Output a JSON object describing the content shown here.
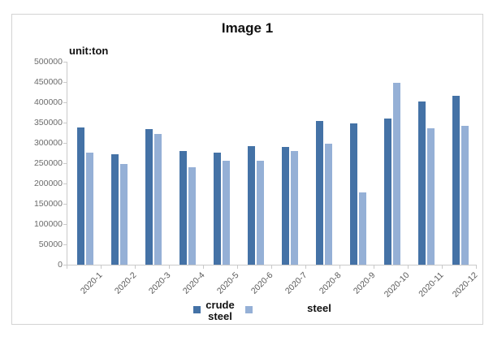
{
  "title": "Image 1",
  "unit_label": "unit:ton",
  "legend": [
    {
      "label": "crude steel",
      "color": "#4472a6"
    },
    {
      "label": "steel",
      "color": "#95b0d6"
    }
  ],
  "chart_data": {
    "type": "bar",
    "title": "Image 1",
    "ylabel": "unit:ton",
    "categories": [
      "2020-1",
      "2020-2",
      "2020-3",
      "2020-4",
      "2020-5",
      "2020-6",
      "2020-7",
      "2020-8",
      "2020-9",
      "2020-10",
      "2020-11",
      "2020-12"
    ],
    "series": [
      {
        "name": "crude steel",
        "color": "#4472a6",
        "values": [
          338000,
          272000,
          334000,
          280000,
          276000,
          292000,
          290000,
          354000,
          348000,
          360000,
          402000,
          415000
        ]
      },
      {
        "name": "steel",
        "color": "#95b0d6",
        "values": [
          276000,
          248000,
          322000,
          240000,
          256000,
          256000,
          280000,
          298000,
          178000,
          448000,
          336000,
          342000
        ]
      }
    ],
    "ylim": [
      0,
      500000
    ],
    "yticks": [
      0,
      50000,
      100000,
      150000,
      200000,
      250000,
      300000,
      350000,
      400000,
      450000,
      500000
    ],
    "grid": false,
    "legend_position": "bottom"
  }
}
